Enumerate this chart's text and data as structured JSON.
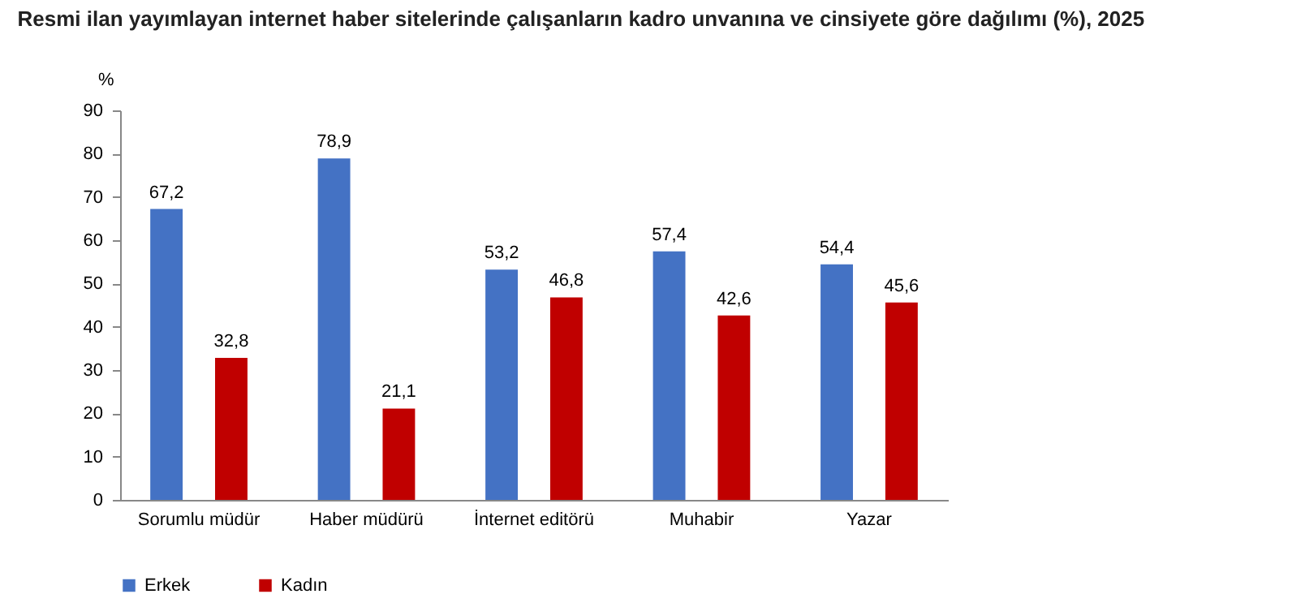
{
  "chart_data": {
    "type": "bar",
    "title": "Resmi ilan yayımlayan internet haber sitelerinde çalışanların kadro unvanına ve cinsiyete göre dağılımı (%), 2025",
    "ylabel": "%",
    "categories": [
      "Sorumlu müdür",
      "Haber müdürü",
      "İnternet editörü",
      "Muhabir",
      "Yazar"
    ],
    "series": [
      {
        "name": "Erkek",
        "color": "#4472c4",
        "values": [
          67.2,
          78.9,
          53.2,
          57.4,
          54.4
        ],
        "value_labels": [
          "67,2",
          "78,9",
          "53,2",
          "57,4",
          "54,4"
        ]
      },
      {
        "name": "Kadın",
        "color": "#c00000",
        "values": [
          32.8,
          21.1,
          46.8,
          42.6,
          45.6
        ],
        "value_labels": [
          "32,8",
          "21,1",
          "46,8",
          "42,6",
          "45,6"
        ]
      }
    ],
    "ylim": [
      0,
      90
    ],
    "yticks": [
      0,
      10,
      20,
      30,
      40,
      50,
      60,
      70,
      80,
      90
    ],
    "grid": false,
    "legend": "bottom"
  }
}
